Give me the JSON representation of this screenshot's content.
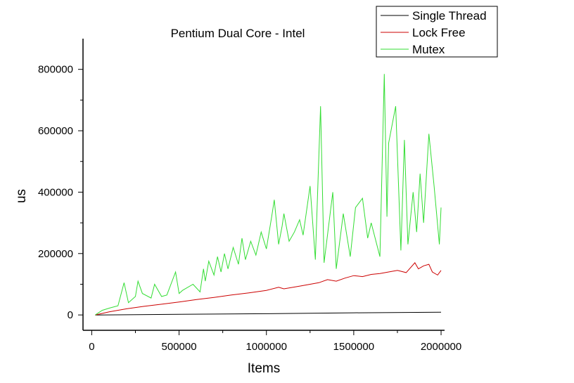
{
  "chart_data": {
    "type": "line",
    "title": "Pentium Dual Core - Intel",
    "xlabel": "Items",
    "ylabel": "us",
    "xlim": [
      -50000,
      2020000
    ],
    "ylim": [
      -50000,
      900000
    ],
    "xticks": [
      0,
      500000,
      1000000,
      1500000,
      2000000
    ],
    "xtick_labels": [
      "0",
      "500000",
      "1000000",
      "1500000",
      "2000000"
    ],
    "yticks": [
      0,
      200000,
      400000,
      600000,
      800000
    ],
    "ytick_labels": [
      "0",
      "200000",
      "400000",
      "600000",
      "800000"
    ],
    "legend_position": "top-right",
    "grid": false,
    "series": [
      {
        "name": "Single Thread",
        "color": "#000000",
        "x": [
          20000,
          500000,
          1000000,
          1500000,
          2000000
        ],
        "y": [
          0,
          2000,
          4000,
          7000,
          9000
        ]
      },
      {
        "name": "Lock Free",
        "color": "#cc0000",
        "x": [
          20000,
          100000,
          200000,
          300000,
          400000,
          500000,
          600000,
          700000,
          800000,
          900000,
          1000000,
          1070000,
          1100000,
          1200000,
          1300000,
          1350000,
          1400000,
          1450000,
          1500000,
          1550000,
          1600000,
          1650000,
          1700000,
          1750000,
          1800000,
          1850000,
          1870000,
          1900000,
          1930000,
          1950000,
          1980000,
          2000000
        ],
        "y": [
          0,
          10000,
          20000,
          28000,
          35000,
          42000,
          50000,
          57000,
          65000,
          72000,
          80000,
          90000,
          85000,
          95000,
          105000,
          115000,
          110000,
          120000,
          128000,
          125000,
          132000,
          135000,
          140000,
          145000,
          138000,
          170000,
          150000,
          160000,
          165000,
          140000,
          130000,
          145000
        ]
      },
      {
        "name": "Mutex",
        "color": "#33dd33",
        "x": [
          20000,
          60000,
          100000,
          150000,
          185000,
          210000,
          250000,
          265000,
          290000,
          340000,
          360000,
          400000,
          430000,
          480000,
          500000,
          520000,
          580000,
          620000,
          640000,
          650000,
          670000,
          700000,
          720000,
          740000,
          760000,
          780000,
          810000,
          840000,
          860000,
          880000,
          910000,
          940000,
          970000,
          1000000,
          1030000,
          1045000,
          1070000,
          1090000,
          1100000,
          1130000,
          1160000,
          1190000,
          1210000,
          1250000,
          1280000,
          1310000,
          1330000,
          1380000,
          1400000,
          1440000,
          1480000,
          1510000,
          1550000,
          1580000,
          1600000,
          1650000,
          1675000,
          1690000,
          1700000,
          1740000,
          1770000,
          1790000,
          1810000,
          1840000,
          1860000,
          1880000,
          1900000,
          1930000,
          1960000,
          1990000,
          2000000
        ],
        "y": [
          0,
          15000,
          22000,
          30000,
          105000,
          40000,
          60000,
          110000,
          70000,
          55000,
          100000,
          60000,
          65000,
          140000,
          70000,
          80000,
          100000,
          75000,
          150000,
          110000,
          175000,
          130000,
          190000,
          140000,
          200000,
          150000,
          220000,
          165000,
          250000,
          180000,
          240000,
          195000,
          270000,
          215000,
          320000,
          375000,
          230000,
          290000,
          330000,
          240000,
          270000,
          310000,
          260000,
          420000,
          180000,
          680000,
          170000,
          400000,
          150000,
          330000,
          190000,
          350000,
          380000,
          250000,
          300000,
          190000,
          785000,
          320000,
          560000,
          680000,
          210000,
          570000,
          230000,
          400000,
          270000,
          460000,
          300000,
          590000,
          420000,
          230000,
          350000
        ]
      }
    ]
  }
}
